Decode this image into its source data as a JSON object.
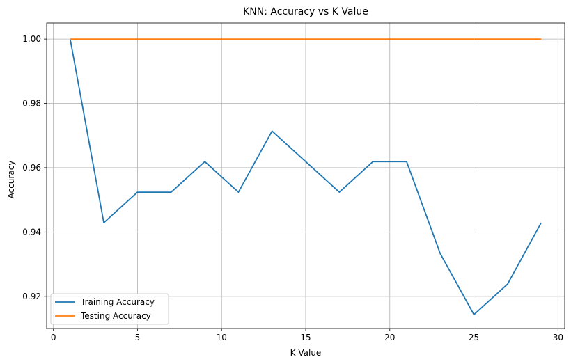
{
  "chart_data": {
    "type": "line",
    "title": "KNN: Accuracy vs K Value",
    "xlabel": "K Value",
    "ylabel": "Accuracy",
    "xlim": [
      -0.4,
      30.4
    ],
    "ylim": [
      0.91,
      1.005
    ],
    "xticks": [
      0,
      5,
      10,
      15,
      20,
      25,
      30
    ],
    "xtick_labels": [
      "0",
      "5",
      "10",
      "15",
      "20",
      "25",
      "30"
    ],
    "yticks": [
      0.92,
      0.94,
      0.96,
      0.98,
      1.0
    ],
    "ytick_labels": [
      "0.92",
      "0.94",
      "0.96",
      "0.98",
      "1.00"
    ],
    "grid": true,
    "legend_position": "lower-left",
    "x": [
      1,
      3,
      5,
      7,
      9,
      11,
      13,
      15,
      17,
      19,
      21,
      23,
      25,
      27,
      29
    ],
    "series": [
      {
        "name": "Training Accuracy",
        "color": "#1f77b4",
        "values": [
          1.0,
          0.9429,
          0.9524,
          0.9524,
          0.9619,
          0.9524,
          0.9714,
          0.9619,
          0.9524,
          0.9619,
          0.9619,
          0.9333,
          0.9143,
          0.9238,
          0.9429
        ]
      },
      {
        "name": "Testing Accuracy",
        "color": "#ff7f0e",
        "values": [
          1.0,
          1.0,
          1.0,
          1.0,
          1.0,
          1.0,
          1.0,
          1.0,
          1.0,
          1.0,
          1.0,
          1.0,
          1.0,
          1.0,
          1.0
        ]
      }
    ]
  }
}
